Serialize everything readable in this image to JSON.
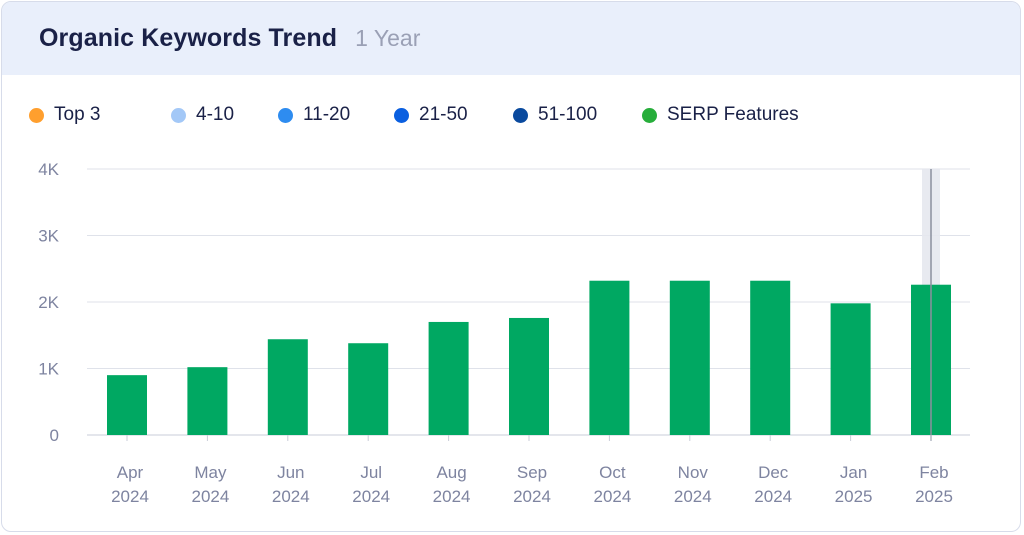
{
  "header": {
    "title": "Organic Keywords Trend",
    "range": "1 Year"
  },
  "legend": [
    {
      "label": "Top 3",
      "color": "#ff9f2e"
    },
    {
      "label": "4-10",
      "color": "#a3c8f7"
    },
    {
      "label": "11-20",
      "color": "#2e8cf0"
    },
    {
      "label": "21-50",
      "color": "#0a5fe0"
    },
    {
      "label": "51-100",
      "color": "#0a4a9e"
    },
    {
      "label": "SERP Features",
      "color": "#27ae3b"
    }
  ],
  "chart_data": {
    "type": "bar",
    "categories": [
      [
        "Apr",
        "2024"
      ],
      [
        "May",
        "2024"
      ],
      [
        "Jun",
        "2024"
      ],
      [
        "Jul",
        "2024"
      ],
      [
        "Aug",
        "2024"
      ],
      [
        "Sep",
        "2024"
      ],
      [
        "Oct",
        "2024"
      ],
      [
        "Nov",
        "2024"
      ],
      [
        "Dec",
        "2024"
      ],
      [
        "Jan",
        "2025"
      ],
      [
        "Feb",
        "2025"
      ]
    ],
    "series": [
      {
        "color": "#00a862",
        "values": [
          900,
          1020,
          1440,
          1380,
          1700,
          1760,
          2320,
          2320,
          2320,
          1980,
          2260
        ]
      }
    ],
    "ylim": [
      0,
      4000
    ],
    "yticks": [
      {
        "value": 0,
        "label": "0"
      },
      {
        "value": 1000,
        "label": "1K"
      },
      {
        "value": 2000,
        "label": "2K"
      },
      {
        "value": 3000,
        "label": "3K"
      },
      {
        "value": 4000,
        "label": "4K"
      }
    ],
    "highlighted_category": 10,
    "grid": true
  }
}
